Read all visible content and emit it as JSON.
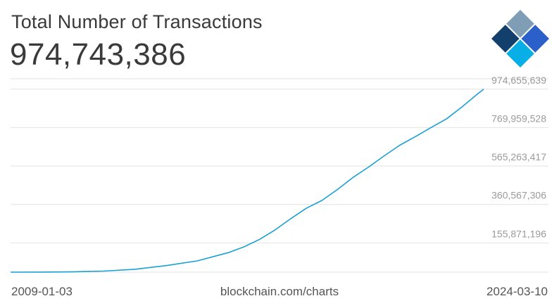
{
  "header": {
    "title": "Total Number of Transactions",
    "total_value": "974,743,386"
  },
  "logo": {
    "icon": "blockchain-logo-icon"
  },
  "footer": {
    "start_date": "2009-01-03",
    "source": "blockchain.com/charts",
    "end_date": "2024-03-10"
  },
  "colors": {
    "line": "#1a9fd6",
    "grid": "#e2e2e2",
    "tick_text": "#9a9a9a",
    "title_text": "#3a3a3a",
    "logo_dark": "#123f6b",
    "logo_slate": "#7f9db4",
    "logo_blue": "#2b5fc9",
    "logo_cyan": "#08aee6",
    "logo_light": "#a9d3ea"
  },
  "chart_data": {
    "type": "line",
    "title": "Total Number of Transactions",
    "xlabel": "",
    "ylabel": "",
    "xlim": [
      "2009-01-03",
      "2024-03-10"
    ],
    "ylim": [
      0,
      1030000000
    ],
    "grid": true,
    "legend": "none",
    "y_ticks": [
      155871196,
      360567306,
      565263417,
      769959528,
      974655639
    ],
    "y_tick_labels": [
      "155,871,196",
      "360,567,306",
      "565,263,417",
      "769,959,528",
      "974,655,639"
    ],
    "series": [
      {
        "x": [
          "2009-01-03",
          "2010-01-01",
          "2011-01-01",
          "2012-01-01",
          "2013-01-01",
          "2014-01-01",
          "2015-01-01",
          "2016-01-01",
          "2016-07-01",
          "2017-01-01",
          "2017-07-01",
          "2018-01-01",
          "2018-07-01",
          "2019-01-01",
          "2019-07-01",
          "2020-01-01",
          "2020-07-01",
          "2021-01-01",
          "2021-07-01",
          "2022-01-01",
          "2022-07-01",
          "2023-01-01",
          "2023-07-01",
          "2024-01-01",
          "2024-03-10"
        ],
        "y": [
          0,
          200000,
          1500000,
          5500000,
          15500000,
          35000000,
          60000000,
          104000000,
          135000000,
          175000000,
          225000000,
          285000000,
          340000000,
          382000000,
          440000000,
          505000000,
          560000000,
          620000000,
          676000000,
          722000000,
          770000000,
          817000000,
          880000000,
          950000000,
          974743386
        ]
      }
    ]
  }
}
